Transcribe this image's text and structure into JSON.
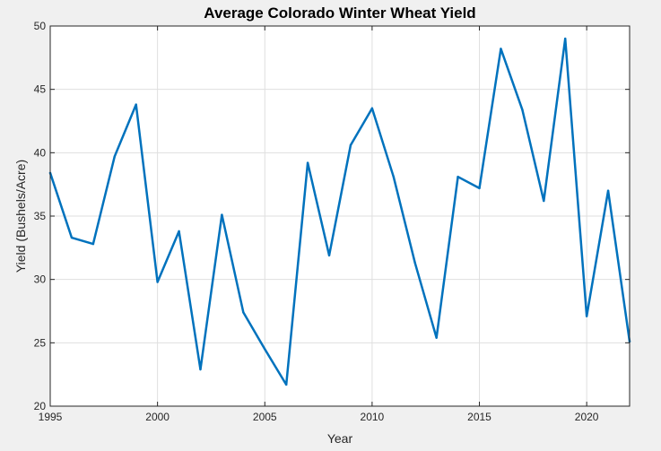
{
  "chart_data": {
    "type": "line",
    "title": "Average Colorado Winter Wheat Yield",
    "xlabel": "Year",
    "ylabel": "Yield (Bushels/Acre)",
    "xlim": [
      1995,
      2022
    ],
    "ylim": [
      20,
      50
    ],
    "xticks": [
      "1995",
      "2000",
      "2005",
      "2010",
      "2015",
      "2020"
    ],
    "yticks": [
      "20",
      "25",
      "30",
      "35",
      "40",
      "45",
      "50"
    ],
    "grid": true,
    "x": [
      1995,
      1996,
      1997,
      1998,
      1999,
      2000,
      2001,
      2002,
      2003,
      2004,
      2005,
      2006,
      2007,
      2008,
      2009,
      2010,
      2011,
      2012,
      2013,
      2014,
      2015,
      2016,
      2017,
      2018,
      2019,
      2020,
      2021,
      2022
    ],
    "series": [
      {
        "values": [
          38.4,
          33.3,
          32.8,
          39.7,
          43.8,
          29.8,
          33.8,
          22.9,
          35.1,
          27.4,
          24.5,
          21.7,
          39.2,
          31.9,
          40.6,
          43.5,
          38.1,
          31.3,
          25.4,
          38.1,
          37.2,
          48.2,
          43.4,
          36.2,
          49.0,
          27.1,
          37.0,
          25.1
        ]
      }
    ],
    "colors": {
      "line": "#0072BD",
      "grid": "#dfdfdf",
      "axes": "#262626",
      "plot_bg": "#ffffff",
      "figure_bg": "#f0f0f0"
    }
  }
}
